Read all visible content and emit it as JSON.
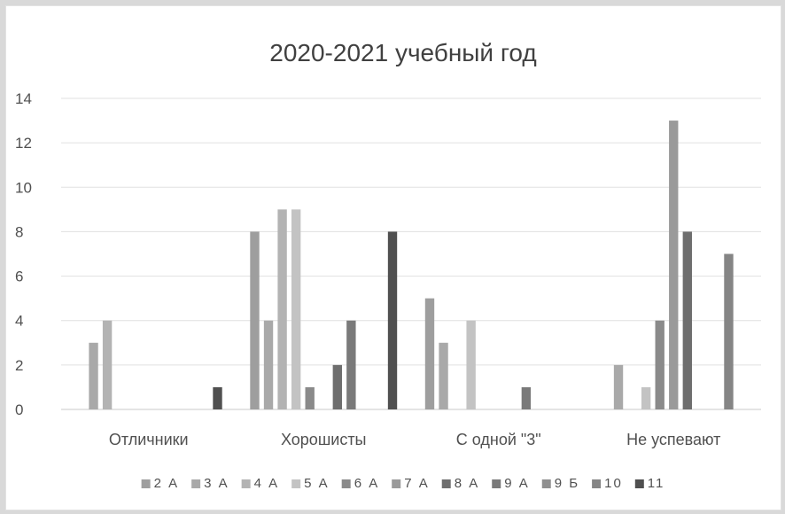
{
  "chart_data": {
    "type": "bar",
    "title": "2020-2021 учебный год",
    "categories": [
      "Отличники",
      "Хорошисты",
      "С одной \"3\"",
      "Не успевают"
    ],
    "ylim": [
      0,
      14
    ],
    "yticks": [
      "0",
      "2",
      "4",
      "6",
      "8",
      "10",
      "12",
      "14"
    ],
    "grid": true,
    "legend_position": "bottom",
    "series": [
      {
        "name": "2 А",
        "color": "#9e9e9e",
        "values": [
          0,
          8,
          5,
          0
        ]
      },
      {
        "name": "3 А",
        "color": "#a9a9a9",
        "values": [
          3,
          4,
          3,
          2
        ]
      },
      {
        "name": "4 А",
        "color": "#b3b3b3",
        "values": [
          4,
          9,
          0,
          0
        ]
      },
      {
        "name": "5 А",
        "color": "#c3c3c3",
        "values": [
          0,
          9,
          4,
          1
        ]
      },
      {
        "name": "6 А",
        "color": "#8a8a8a",
        "values": [
          0,
          1,
          0,
          4
        ]
      },
      {
        "name": "7 А",
        "color": "#9a9a9a",
        "values": [
          0,
          0,
          0,
          13
        ]
      },
      {
        "name": "8 А",
        "color": "#6e6e6e",
        "values": [
          0,
          2,
          0,
          8
        ]
      },
      {
        "name": "9 А",
        "color": "#7a7a7a",
        "values": [
          0,
          4,
          1,
          0
        ]
      },
      {
        "name": "9 Б",
        "color": "#8f8f8f",
        "values": [
          0,
          0,
          0,
          0
        ]
      },
      {
        "name": "10",
        "color": "#858585",
        "values": [
          0,
          0,
          0,
          7
        ]
      },
      {
        "name": "11",
        "color": "#505050",
        "values": [
          1,
          8,
          0,
          0
        ]
      }
    ]
  }
}
